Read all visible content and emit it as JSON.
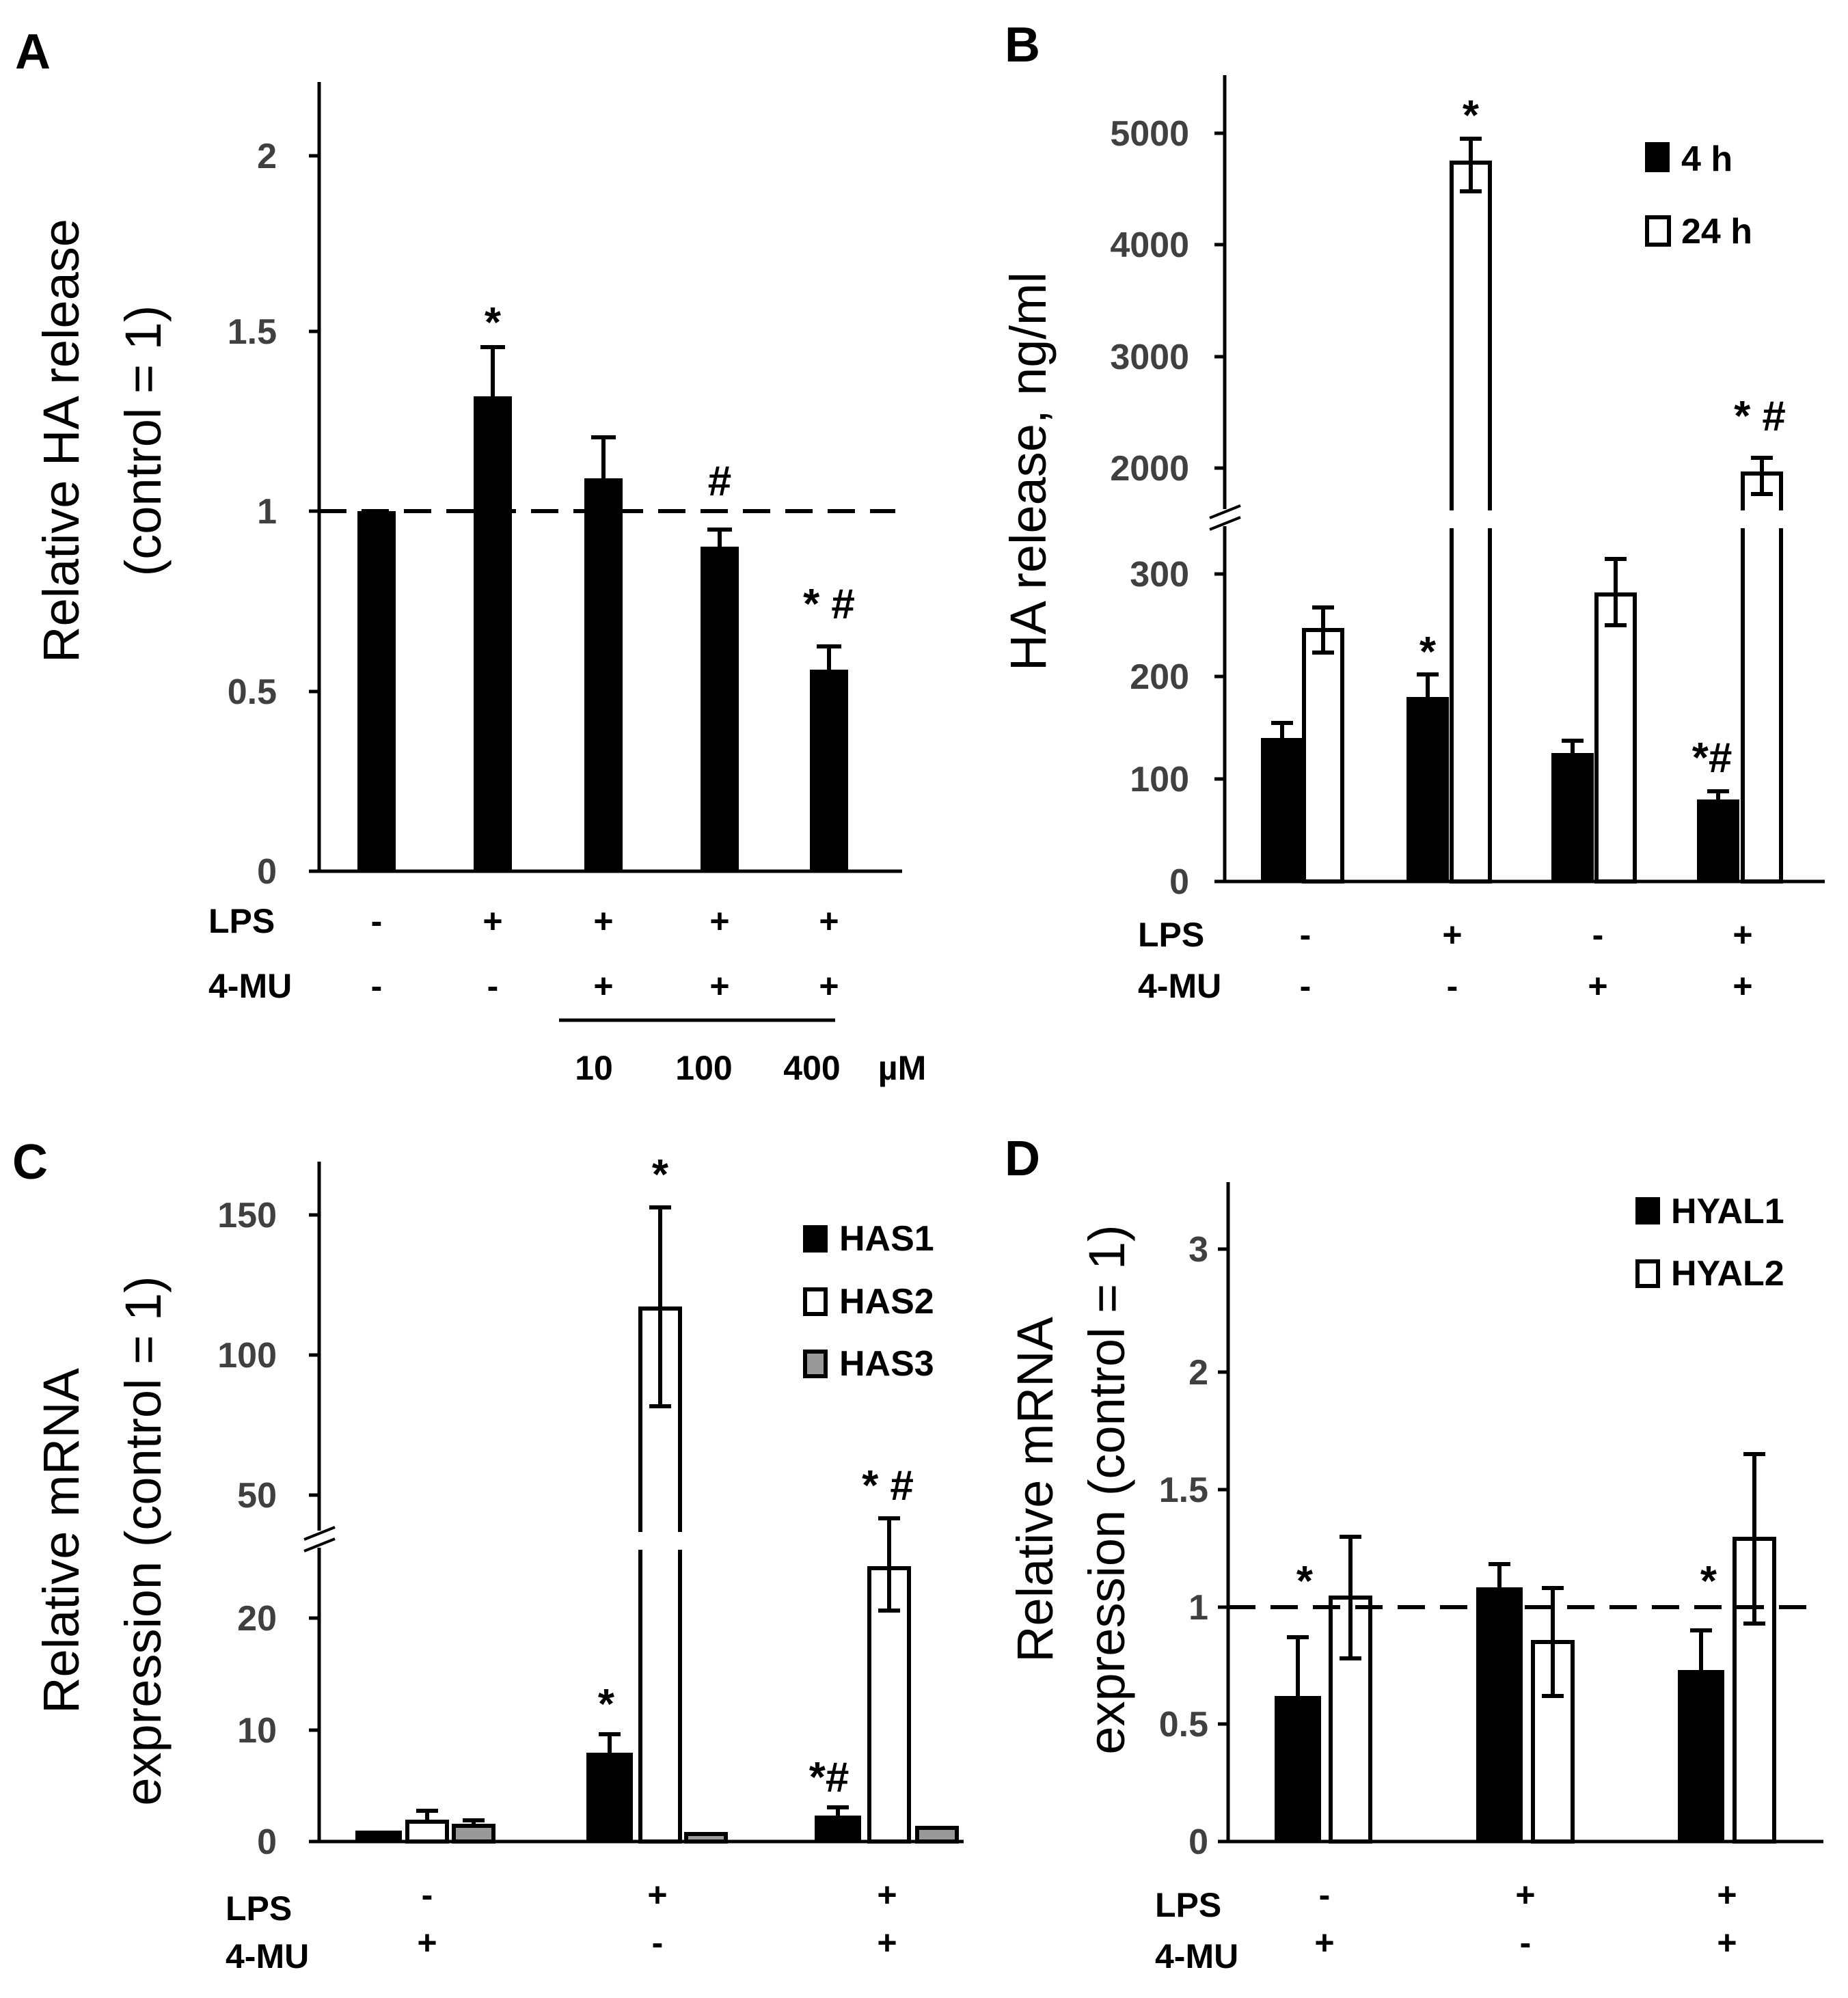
{
  "chart_data": [
    {
      "panel": "A",
      "type": "bar",
      "ylabel_line1": "Relative HA release",
      "ylabel_line2": "(control = 1)",
      "ylim": [
        0,
        2.2
      ],
      "yticks": [
        "0",
        "0.5",
        "1",
        "1.5",
        "2"
      ],
      "reference_line": 1,
      "rows": [
        {
          "label": "LPS",
          "values": [
            "-",
            "+",
            "+",
            "+",
            "+"
          ]
        },
        {
          "label": "4-MU",
          "values": [
            "-",
            "-",
            "+",
            "+",
            "+"
          ]
        }
      ],
      "doses": [
        "10",
        "100",
        "400"
      ],
      "dose_unit": "µM",
      "series": [
        {
          "name": "HA release",
          "color": "#000000",
          "values": [
            1.0,
            1.31,
            1.08,
            0.89,
            0.55
          ],
          "errors": [
            0,
            0.14,
            0.12,
            0.05,
            0.07
          ],
          "marks": [
            "",
            "*",
            "",
            "#",
            "* #"
          ]
        }
      ]
    },
    {
      "panel": "B",
      "type": "bar",
      "ylabel": "HA release, ng/ml",
      "broken_axis": true,
      "yticks_lower": [
        "0",
        "100",
        "200",
        "300"
      ],
      "yticks_upper": [
        "2000",
        "3000",
        "4000",
        "5000"
      ],
      "legend": [
        "4 h",
        "24 h"
      ],
      "rows": [
        {
          "label": "LPS",
          "values": [
            "-",
            "+",
            "-",
            "+"
          ]
        },
        {
          "label": "4-MU",
          "values": [
            "-",
            "-",
            "+",
            "+"
          ]
        }
      ],
      "series": [
        {
          "name": "4 h",
          "color": "#000000",
          "values": [
            140,
            180,
            125,
            80
          ],
          "errors": [
            15,
            22,
            12,
            8
          ],
          "marks": [
            "",
            "*",
            "",
            "*#"
          ]
        },
        {
          "name": "24 h",
          "color": "#ffffff",
          "values": [
            245,
            4700,
            280,
            1950
          ],
          "errors": [
            22,
            250,
            32,
            150
          ],
          "marks": [
            "",
            "*",
            "",
            "* #"
          ]
        }
      ]
    },
    {
      "panel": "C",
      "type": "bar",
      "ylabel_line1": "Relative mRNA",
      "ylabel_line2": "expression (control = 1)",
      "broken_axis": true,
      "yticks_lower": [
        "0",
        "10",
        "20"
      ],
      "yticks_upper": [
        "50",
        "100",
        "150"
      ],
      "legend": [
        "HAS1",
        "HAS2",
        "HAS3"
      ],
      "rows": [
        {
          "label": "LPS",
          "values": [
            "-",
            "+",
            "+"
          ]
        },
        {
          "label": "4-MU",
          "values": [
            "+",
            "-",
            "+"
          ]
        }
      ],
      "series": [
        {
          "name": "HAS1",
          "color": "#000000",
          "values": [
            1.0,
            8.0,
            2.3
          ],
          "errors": [
            0.3,
            1.6,
            0.7
          ],
          "marks": [
            "",
            "*",
            "*#"
          ]
        },
        {
          "name": "HAS2",
          "color": "#ffffff",
          "values": [
            1.8,
            121,
            25
          ],
          "errors": [
            1.0,
            35,
            4.5
          ],
          "marks": [
            "",
            "*",
            "* #"
          ]
        },
        {
          "name": "HAS3",
          "color": "#999999",
          "values": [
            1.4,
            0.7,
            1.2
          ],
          "errors": [
            0.5,
            0.2,
            0.4
          ],
          "marks": [
            "",
            "",
            ""
          ]
        }
      ]
    },
    {
      "panel": "D",
      "type": "bar",
      "ylabel_line1": "Relative mRNA",
      "ylabel_line2": "expression (control = 1)",
      "ylim": [
        0,
        3.5
      ],
      "yticks": [
        "0",
        "0.5",
        "1",
        "1.5",
        "2",
        "3"
      ],
      "reference_line": 1,
      "legend": [
        "HYAL1",
        "HYAL2"
      ],
      "rows": [
        {
          "label": "LPS",
          "values": [
            "-",
            "+",
            "+"
          ]
        },
        {
          "label": "4-MU",
          "values": [
            "+",
            "-",
            "+"
          ]
        }
      ],
      "series": [
        {
          "name": "HYAL1",
          "color": "#000000",
          "values": [
            0.62,
            1.08,
            0.73
          ],
          "errors": [
            0.25,
            0.1,
            0.17
          ],
          "marks": [
            "*",
            "",
            "*"
          ]
        },
        {
          "name": "HYAL2",
          "color": "#ffffff",
          "values": [
            1.04,
            0.85,
            1.29
          ],
          "errors": [
            0.26,
            0.23,
            0.36
          ],
          "marks": [
            "",
            "",
            ""
          ]
        }
      ]
    }
  ]
}
